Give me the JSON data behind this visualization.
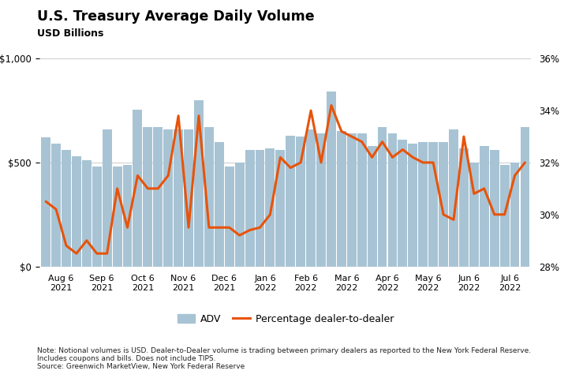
{
  "title": "U.S. Treasury Average Daily Volume",
  "subtitle": "USD Billions",
  "note": "Note: Notional volumes is USD. Dealer-to-Dealer volume is trading between primary dealers as reported to the New York Federal Reserve.\nIncludes coupons and bills. Does not include TIPS.\nSource: Greenwich MarketView, New York Federal Reserve",
  "bar_color": "#a8c4d4",
  "line_color": "#e8530a",
  "background_color": "#ffffff",
  "x_labels": [
    "Aug 6\n2021",
    "Sep 6\n2021",
    "Oct 6\n2021",
    "Nov 6\n2021",
    "Dec 6\n2021",
    "Jan 6\n2022",
    "Feb 6\n2022",
    "Mar 6\n2022",
    "Apr 6\n2022",
    "May 6\n2022",
    "Jun 6\n2022",
    "Jul 6\n2022"
  ],
  "bars_per_month": 4,
  "adv_values": [
    620,
    590,
    560,
    530,
    510,
    480,
    660,
    480,
    490,
    755,
    670,
    670,
    660,
    660,
    660,
    800,
    670,
    600,
    480,
    500,
    560,
    560,
    570,
    560,
    630,
    625,
    660,
    640,
    840,
    650,
    640,
    640,
    580,
    670,
    640,
    610,
    590,
    600,
    600,
    600,
    660,
    570,
    500,
    580,
    560,
    490,
    500,
    670
  ],
  "line_values": [
    30.5,
    30.2,
    28.8,
    28.5,
    29.0,
    28.5,
    28.5,
    31.0,
    29.5,
    31.5,
    31.0,
    31.0,
    31.5,
    33.8,
    29.5,
    33.8,
    29.5,
    29.5,
    29.5,
    29.2,
    29.4,
    29.5,
    30.0,
    32.2,
    31.8,
    32.0,
    34.0,
    32.0,
    34.2,
    33.2,
    33.0,
    32.8,
    32.2,
    32.8,
    32.2,
    32.5,
    32.2,
    32.0,
    32.0,
    30.0,
    29.8,
    33.0,
    30.8,
    31.0,
    30.0,
    30.0,
    31.5,
    32.0
  ],
  "ylim_left": [
    0,
    1000
  ],
  "ylim_right": [
    28,
    36
  ],
  "yticks_left": [
    0,
    500,
    1000
  ],
  "yticks_right": [
    28,
    30,
    32,
    34,
    36
  ],
  "grid_color": "#d0d0d0",
  "legend_adv_label": "ADV",
  "legend_line_label": "Percentage dealer-to-dealer"
}
